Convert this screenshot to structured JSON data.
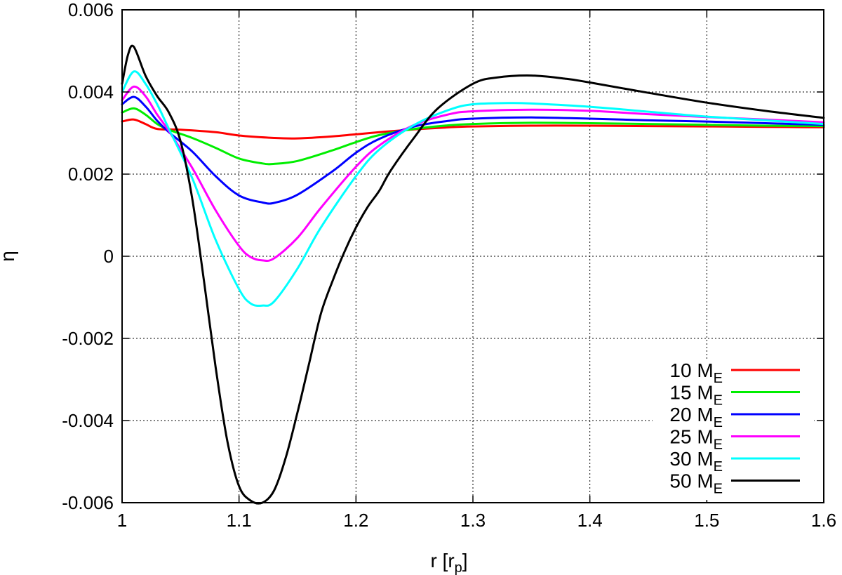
{
  "chart_data": {
    "type": "line",
    "xlabel": "r [r",
    "xlabel_sub": "p",
    "xlabel_end": "]",
    "ylabel": "η",
    "xlim": [
      1.0,
      1.6
    ],
    "ylim": [
      -0.006,
      0.006
    ],
    "x_ticks": [
      1.0,
      1.1,
      1.2,
      1.3,
      1.4,
      1.5,
      1.6
    ],
    "x_tick_labels": [
      "1",
      "1.1",
      "1.2",
      "1.3",
      "1.4",
      "1.5",
      "1.6"
    ],
    "y_ticks": [
      -0.006,
      -0.004,
      -0.002,
      0,
      0.002,
      0.004,
      0.006
    ],
    "y_tick_labels": [
      "-0.006",
      "-0.004",
      "-0.002",
      "0",
      "0.002",
      "0.004",
      "0.006"
    ],
    "grid": true,
    "legend_position": "bottom-right",
    "series": [
      {
        "name": "10 M",
        "name_sub": "E",
        "color": "#ff0000",
        "x": [
          1.0,
          1.01,
          1.02,
          1.03,
          1.05,
          1.08,
          1.1,
          1.13,
          1.15,
          1.18,
          1.2,
          1.22,
          1.25,
          1.28,
          1.3,
          1.35,
          1.4,
          1.45,
          1.5,
          1.55,
          1.6
        ],
        "y": [
          0.00328,
          0.00333,
          0.00322,
          0.0031,
          0.00308,
          0.00302,
          0.00294,
          0.00288,
          0.00287,
          0.00292,
          0.00297,
          0.00302,
          0.00309,
          0.00314,
          0.00316,
          0.00318,
          0.00318,
          0.00317,
          0.00316,
          0.00315,
          0.00314
        ]
      },
      {
        "name": "15 M",
        "name_sub": "E",
        "color": "#00ee00",
        "x": [
          1.0,
          1.01,
          1.02,
          1.03,
          1.04,
          1.06,
          1.08,
          1.1,
          1.12,
          1.13,
          1.15,
          1.18,
          1.2,
          1.22,
          1.25,
          1.28,
          1.3,
          1.35,
          1.4,
          1.45,
          1.5,
          1.55,
          1.6
        ],
        "y": [
          0.0035,
          0.0036,
          0.00345,
          0.00322,
          0.00308,
          0.00288,
          0.00264,
          0.00238,
          0.00226,
          0.00225,
          0.00232,
          0.00258,
          0.00278,
          0.00295,
          0.0031,
          0.00319,
          0.00322,
          0.00325,
          0.00324,
          0.00322,
          0.0032,
          0.00318,
          0.00317
        ]
      },
      {
        "name": "20 M",
        "name_sub": "E",
        "color": "#0000ff",
        "x": [
          1.0,
          1.01,
          1.02,
          1.03,
          1.04,
          1.06,
          1.08,
          1.1,
          1.12,
          1.13,
          1.15,
          1.18,
          1.2,
          1.22,
          1.25,
          1.28,
          1.3,
          1.35,
          1.4,
          1.45,
          1.5,
          1.55,
          1.6
        ],
        "y": [
          0.0037,
          0.00388,
          0.00365,
          0.0033,
          0.00302,
          0.00255,
          0.00195,
          0.00148,
          0.00131,
          0.0013,
          0.0015,
          0.00207,
          0.00252,
          0.00286,
          0.00316,
          0.0033,
          0.00335,
          0.00338,
          0.00335,
          0.00331,
          0.00328,
          0.00324,
          0.0032
        ]
      },
      {
        "name": "25 M",
        "name_sub": "E",
        "color": "#ff00ff",
        "x": [
          1.0,
          1.01,
          1.02,
          1.03,
          1.04,
          1.06,
          1.08,
          1.1,
          1.11,
          1.12,
          1.13,
          1.15,
          1.17,
          1.2,
          1.22,
          1.25,
          1.28,
          1.3,
          1.35,
          1.4,
          1.45,
          1.5,
          1.55,
          1.6
        ],
        "y": [
          0.0038,
          0.00413,
          0.0039,
          0.00345,
          0.00305,
          0.00215,
          0.00112,
          0.00025,
          -2e-05,
          -0.0001,
          -5e-05,
          0.00045,
          0.00118,
          0.00218,
          0.0027,
          0.0032,
          0.00346,
          0.00353,
          0.00357,
          0.00354,
          0.00346,
          0.00339,
          0.00333,
          0.00326
        ]
      },
      {
        "name": "30 M",
        "name_sub": "E",
        "color": "#00ffff",
        "x": [
          1.0,
          1.01,
          1.02,
          1.03,
          1.04,
          1.06,
          1.08,
          1.1,
          1.11,
          1.12,
          1.13,
          1.15,
          1.17,
          1.2,
          1.22,
          1.25,
          1.28,
          1.3,
          1.33,
          1.35,
          1.4,
          1.45,
          1.5,
          1.55,
          1.6
        ],
        "y": [
          0.004,
          0.0045,
          0.0042,
          0.0037,
          0.0031,
          0.0019,
          0.0004,
          -0.0008,
          -0.00115,
          -0.0012,
          -0.0011,
          -0.0003,
          0.0007,
          0.00195,
          0.0026,
          0.0032,
          0.00357,
          0.0037,
          0.00373,
          0.00372,
          0.00364,
          0.00352,
          0.0034,
          0.00331,
          0.00322
        ]
      },
      {
        "name": "50 M",
        "name_sub": "E",
        "color": "#000000",
        "x": [
          1.0,
          1.005,
          1.01,
          1.02,
          1.03,
          1.04,
          1.05,
          1.06,
          1.07,
          1.08,
          1.09,
          1.1,
          1.11,
          1.12,
          1.13,
          1.14,
          1.15,
          1.16,
          1.17,
          1.18,
          1.19,
          1.2,
          1.21,
          1.22,
          1.23,
          1.25,
          1.27,
          1.3,
          1.32,
          1.35,
          1.38,
          1.4,
          1.45,
          1.5,
          1.55,
          1.6
        ],
        "y": [
          0.0042,
          0.0049,
          0.0051,
          0.0044,
          0.0039,
          0.0035,
          0.0028,
          0.0014,
          -0.0006,
          -0.0027,
          -0.0045,
          -0.0056,
          -0.00595,
          -0.006,
          -0.0057,
          -0.0049,
          -0.0038,
          -0.0026,
          -0.0014,
          -0.0006,
          0.0001,
          0.0007,
          0.0012,
          0.0016,
          0.0021,
          0.0029,
          0.0036,
          0.0042,
          0.00435,
          0.0044,
          0.00432,
          0.00423,
          0.00398,
          0.00374,
          0.00354,
          0.00337
        ]
      }
    ]
  }
}
